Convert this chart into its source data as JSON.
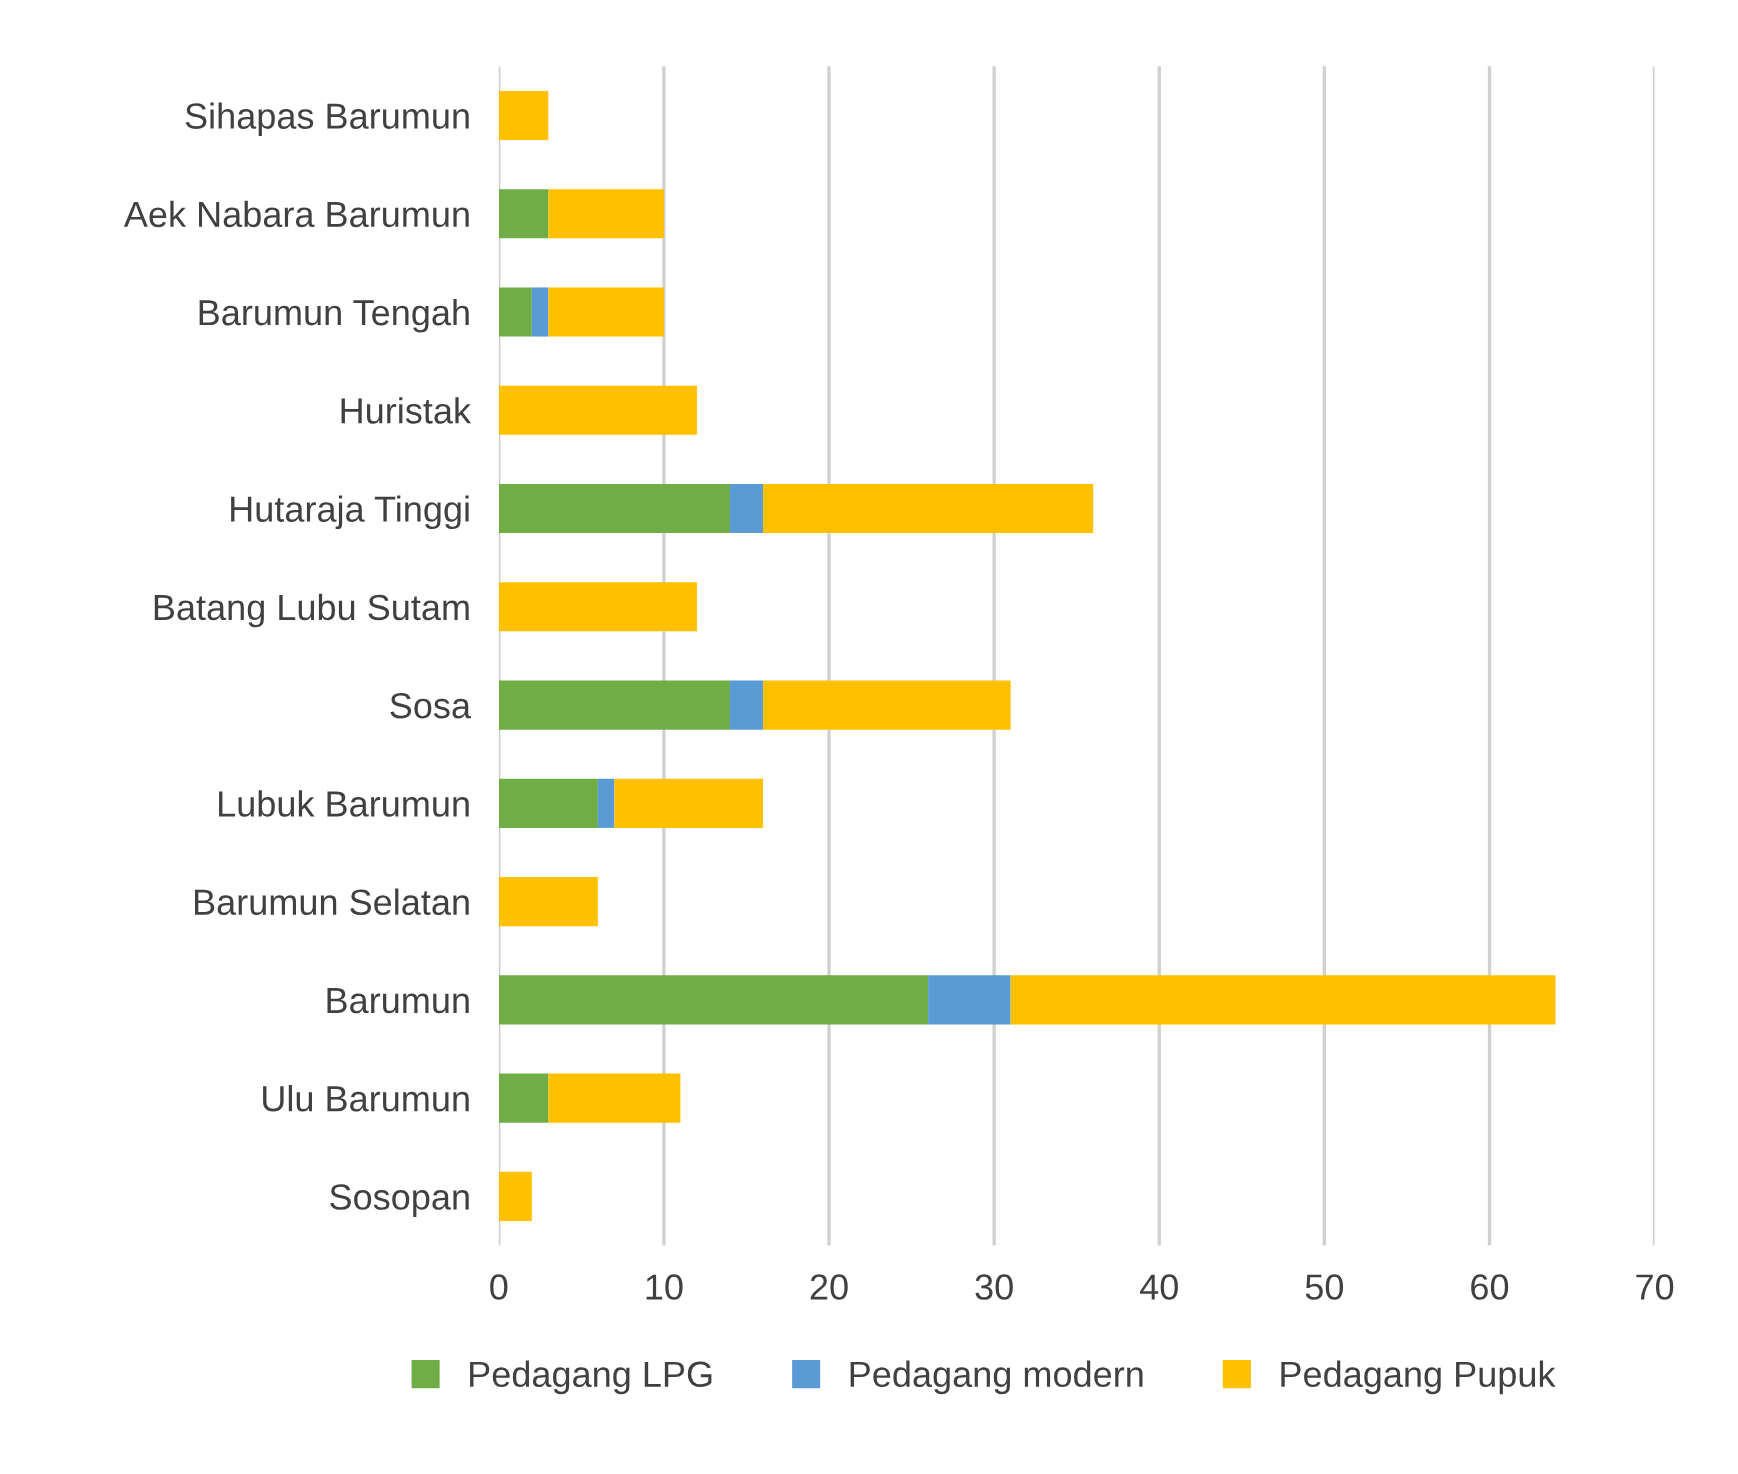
{
  "chart_data": {
    "type": "bar",
    "orientation": "horizontal",
    "stacked": true,
    "categories": [
      "Sihapas Barumun",
      "Aek Nabara Barumun",
      "Barumun Tengah",
      "Huristak",
      "Hutaraja Tinggi",
      "Batang Lubu Sutam",
      "Sosa",
      "Lubuk Barumun",
      "Barumun Selatan",
      "Barumun",
      "Ulu Barumun",
      "Sosopan"
    ],
    "series": [
      {
        "name": "Pedagang LPG",
        "color": "#70ad47",
        "values": [
          0,
          3,
          2,
          0,
          14,
          0,
          14,
          6,
          0,
          26,
          3,
          0
        ]
      },
      {
        "name": "Pedagang modern",
        "color": "#5b9bd5",
        "values": [
          0,
          0,
          1,
          0,
          2,
          0,
          2,
          1,
          0,
          5,
          0,
          0
        ]
      },
      {
        "name": "Pedagang Pupuk",
        "color": "#ffc000",
        "values": [
          3,
          7,
          7,
          12,
          20,
          12,
          15,
          9,
          6,
          33,
          8,
          2
        ]
      }
    ],
    "xlim": [
      0,
      70
    ],
    "xticks": [
      0,
      10,
      20,
      30,
      40,
      50,
      60,
      70
    ],
    "grid": "x",
    "legend": "bottom"
  }
}
